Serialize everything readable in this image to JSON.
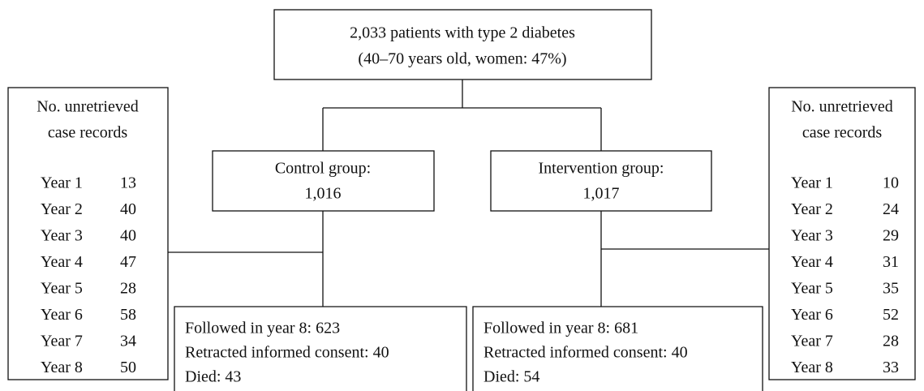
{
  "top": {
    "lines": [
      "2,033 patients with type 2 diabetes",
      "(40–70 years old, women: 47%)"
    ]
  },
  "groups": [
    {
      "label": "Control group:",
      "count": "1,016",
      "outcome": [
        "Followed in year 8:  623",
        "Retracted informed consent: 40",
        "Died:  43"
      ],
      "unretrieved": {
        "title_lines": [
          "No. unretrieved",
          "case records"
        ],
        "rows": [
          [
            "Year 1",
            "13"
          ],
          [
            "Year 2",
            "40"
          ],
          [
            "Year 3",
            "40"
          ],
          [
            "Year 4",
            "47"
          ],
          [
            "Year 5",
            "28"
          ],
          [
            "Year 6",
            "58"
          ],
          [
            "Year 7",
            "34"
          ],
          [
            "Year 8",
            "50"
          ]
        ]
      }
    },
    {
      "label": "Intervention group:",
      "count": "1,017",
      "outcome": [
        "Followed in year 8:  681",
        "Retracted informed consent: 40",
        "Died: 54"
      ],
      "unretrieved": {
        "title_lines": [
          "No. unretrieved",
          "case records"
        ],
        "rows": [
          [
            "Year 1",
            "10"
          ],
          [
            "Year 2",
            "24"
          ],
          [
            "Year 3",
            "29"
          ],
          [
            "Year 4",
            "31"
          ],
          [
            "Year 5",
            "35"
          ],
          [
            "Year 6",
            "52"
          ],
          [
            "Year 7",
            "28"
          ],
          [
            "Year 8",
            "33"
          ]
        ]
      }
    }
  ]
}
